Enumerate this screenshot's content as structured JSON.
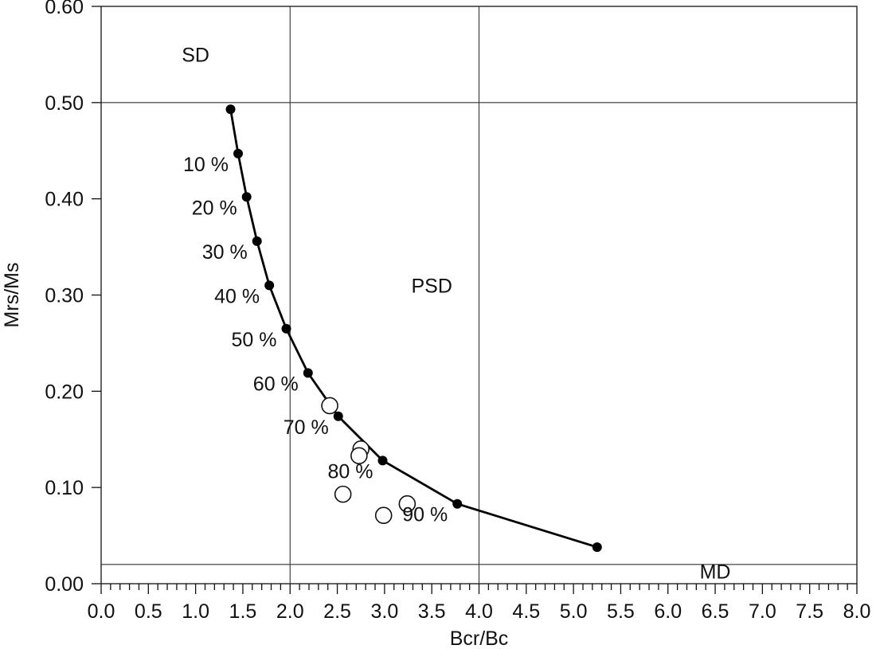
{
  "chart_data": {
    "type": "scatter",
    "xlabel": "Bcr/Bc",
    "ylabel": "Mrs/Ms",
    "xlim": [
      0,
      8
    ],
    "ylim": [
      0,
      0.6
    ],
    "x_ticks": [
      "0.0",
      "0.5",
      "1.0",
      "1.5",
      "2.0",
      "2.5",
      "3.0",
      "3.5",
      "4.0",
      "4.5",
      "5.0",
      "5.5",
      "6.0",
      "6.5",
      "7.0",
      "7.5",
      "8.0"
    ],
    "y_ticks": [
      "0.00",
      "0.10",
      "0.20",
      "0.30",
      "0.40",
      "0.50",
      "0.60"
    ],
    "x_minor_step": 0.1,
    "grid": false,
    "boundaries": {
      "horizontal": [
        0.5,
        0.02
      ],
      "vertical": [
        2.0,
        4.0
      ]
    },
    "regions": [
      {
        "label": "SD",
        "x": 1.0,
        "y": 0.55
      },
      {
        "label": "PSD",
        "x": 3.5,
        "y": 0.31
      },
      {
        "label": "MD",
        "x": 6.5,
        "y": 0.013
      }
    ],
    "series": [
      {
        "style": "line-with-filled-markers",
        "points": [
          {
            "x": 1.37,
            "y": 0.493
          },
          {
            "x": 1.45,
            "y": 0.447,
            "label": "10 %"
          },
          {
            "x": 1.54,
            "y": 0.402,
            "label": "20 %"
          },
          {
            "x": 1.65,
            "y": 0.356,
            "label": "30 %"
          },
          {
            "x": 1.78,
            "y": 0.31,
            "label": "40 %"
          },
          {
            "x": 1.96,
            "y": 0.265,
            "label": "50 %"
          },
          {
            "x": 2.19,
            "y": 0.219,
            "label": "60 %"
          },
          {
            "x": 2.51,
            "y": 0.174,
            "label": "70 %"
          },
          {
            "x": 2.98,
            "y": 0.128,
            "label": "80 %"
          },
          {
            "x": 3.77,
            "y": 0.083,
            "label": "90 %"
          },
          {
            "x": 5.25,
            "y": 0.038
          }
        ]
      },
      {
        "style": "open-circles",
        "points": [
          {
            "x": 2.42,
            "y": 0.185
          },
          {
            "x": 2.75,
            "y": 0.14
          },
          {
            "x": 2.73,
            "y": 0.133
          },
          {
            "x": 2.56,
            "y": 0.093
          },
          {
            "x": 2.99,
            "y": 0.071
          },
          {
            "x": 3.24,
            "y": 0.083
          }
        ]
      }
    ]
  }
}
